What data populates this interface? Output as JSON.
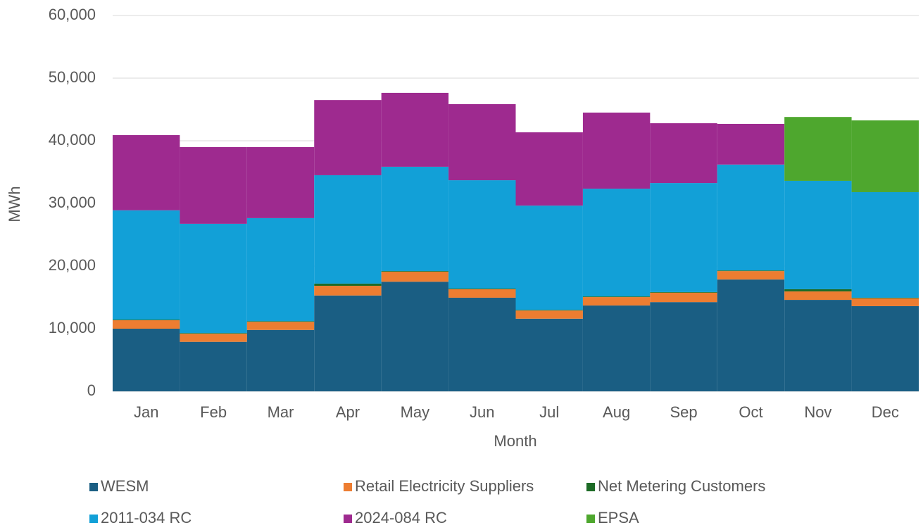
{
  "chart_data": {
    "type": "stacked_bar",
    "x_label": "Month",
    "y_label": "MWh",
    "categories": [
      "Jan",
      "Feb",
      "Mar",
      "Apr",
      "May",
      "Jun",
      "Jul",
      "Aug",
      "Sep",
      "Oct",
      "Nov",
      "Dec"
    ],
    "series": [
      {
        "name": "WESM",
        "color": "#1a5e83",
        "values": [
          10000,
          7900,
          9800,
          15300,
          17500,
          14950,
          11600,
          13700,
          14250,
          17850,
          14600,
          13600
        ]
      },
      {
        "name": "Retail Electricity Suppliers",
        "color": "#ed7d31",
        "values": [
          1350,
          1300,
          1300,
          1550,
          1600,
          1350,
          1300,
          1350,
          1500,
          1350,
          1350,
          1250
        ]
      },
      {
        "name": "Net Metering Customers",
        "color": "#1d6b26",
        "values": [
          100,
          100,
          100,
          350,
          100,
          100,
          100,
          100,
          100,
          100,
          350,
          100
        ]
      },
      {
        "name": "2011-034 RC",
        "color": "#12a0d7",
        "values": [
          17450,
          17450,
          16450,
          17300,
          16650,
          17300,
          16650,
          17200,
          17400,
          16900,
          17300,
          16850
        ]
      },
      {
        "name": "2024-084 RC",
        "color": "#9e2a8f",
        "values": [
          12000,
          12250,
          11350,
          12000,
          11800,
          12150,
          11700,
          12150,
          9550,
          6500,
          0,
          0
        ]
      },
      {
        "name": "EPSA",
        "color": "#4ea72e",
        "values": [
          0,
          0,
          0,
          0,
          0,
          0,
          0,
          0,
          0,
          0,
          10200,
          11450
        ]
      }
    ],
    "ylim": [
      0,
      60000
    ],
    "yticks": [
      0,
      {
        "value": 10000,
        "label": "10,000"
      },
      {
        "value": 20000,
        "label": "20,000"
      },
      {
        "value": 30000,
        "label": "30,000"
      },
      {
        "value": 40000,
        "label": "40,000"
      },
      {
        "value": 50000,
        "label": "50,000"
      },
      {
        "value": 60000,
        "label": "60,000"
      }
    ],
    "grid": true
  }
}
